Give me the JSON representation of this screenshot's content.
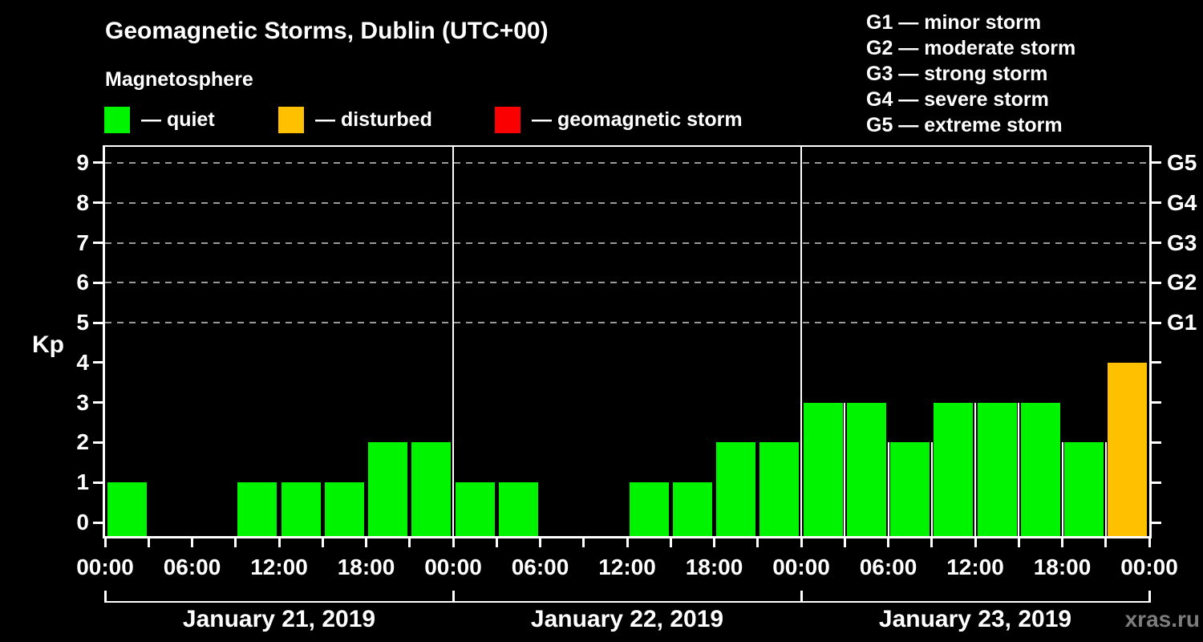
{
  "header": {
    "title": "Geomagnetic Storms, Dublin (UTC+00)",
    "subtitle": "Magnetosphere"
  },
  "legend": {
    "items": [
      {
        "name": "quiet",
        "label": "— quiet",
        "color": "#00f400"
      },
      {
        "name": "disturbed",
        "label": "— disturbed",
        "color": "#ffc000"
      },
      {
        "name": "storm",
        "label": "— geomagnetic storm",
        "color": "#fb0000"
      }
    ]
  },
  "g_legend": {
    "items": [
      "G1 — minor storm",
      "G2 — moderate storm",
      "G3 — strong storm",
      "G4 — severe storm",
      "G5 — extreme storm"
    ]
  },
  "watermark": "xras.ru",
  "chart_data": {
    "type": "bar",
    "title": "Geomagnetic Storms, Dublin (UTC+00)",
    "subtitle": "Magnetosphere",
    "ylabel": "Kp",
    "ylim": [
      0,
      9
    ],
    "yticks": [
      0,
      1,
      2,
      3,
      4,
      5,
      6,
      7,
      8,
      9
    ],
    "grid_levels": [
      5,
      6,
      7,
      8,
      9
    ],
    "right_axis_labels": [
      {
        "kp": 5,
        "label": "G1"
      },
      {
        "kp": 6,
        "label": "G2"
      },
      {
        "kp": 7,
        "label": "G3"
      },
      {
        "kp": 8,
        "label": "G4"
      },
      {
        "kp": 9,
        "label": "G5"
      }
    ],
    "x_tick_interval_hours": 3,
    "x_label_interval_hours": 6,
    "x_labels_cycle": [
      "00:00",
      "06:00",
      "12:00",
      "18:00"
    ],
    "bar_interval_hours": 3,
    "days": [
      {
        "date": "January 21, 2019",
        "kp": [
          1,
          0,
          0,
          1,
          1,
          1,
          2,
          2
        ],
        "separators": false
      },
      {
        "date": "January 22, 2019",
        "kp": [
          1,
          1,
          0,
          0,
          1,
          1,
          2,
          2
        ],
        "separators": false
      },
      {
        "date": "January 23, 2019",
        "kp": [
          3,
          3,
          2,
          3,
          3,
          3,
          2,
          4
        ],
        "separators": true
      }
    ],
    "colors": {
      "quiet": "#00f400",
      "disturbed": "#ffc000",
      "storm": "#fb0000"
    },
    "thresholds": {
      "disturbed_min": 4,
      "storm_min": 5
    },
    "legend_position": "top-left",
    "grid": "dashed-horizontal-at-G-levels"
  }
}
